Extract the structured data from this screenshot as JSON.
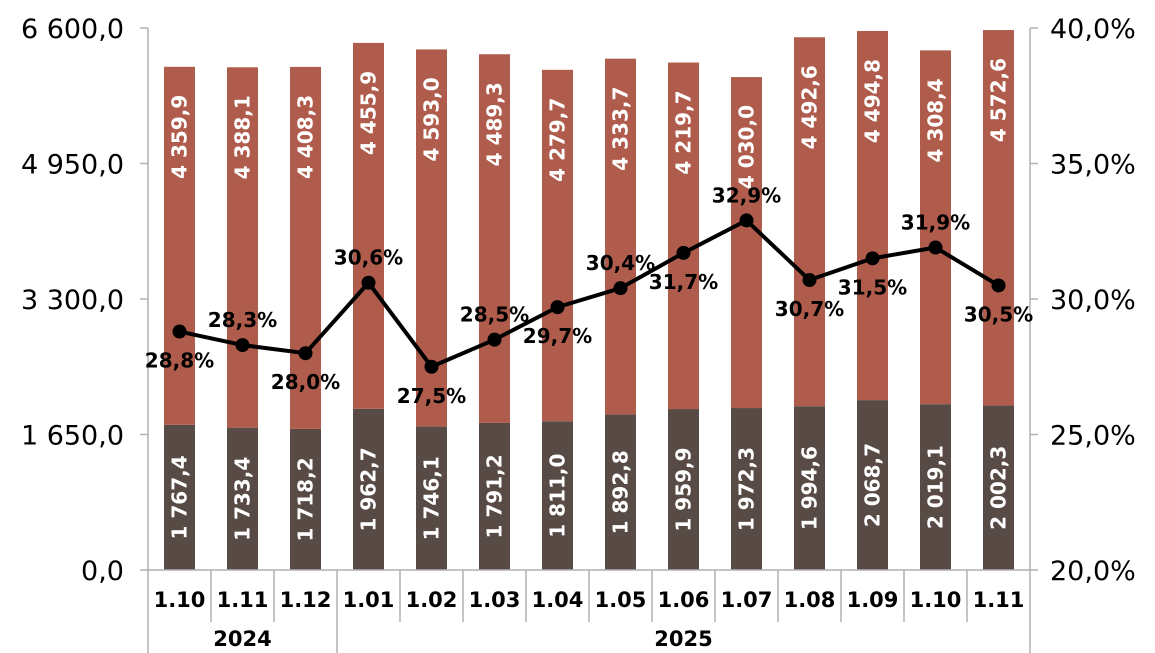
{
  "chart_data": {
    "type": "bar",
    "stacked": true,
    "categories": [
      "1.10",
      "1.11",
      "1.12",
      "1.01",
      "1.02",
      "1.03",
      "1.04",
      "1.05",
      "1.06",
      "1.07",
      "1.08",
      "1.09",
      "1.10",
      "1.11"
    ],
    "groups": [
      {
        "label": "2024",
        "count": 3
      },
      {
        "label": "2025",
        "count": 11
      }
    ],
    "series": [
      {
        "color": "#584a44",
        "values": [
          1767.4,
          1733.4,
          1718.2,
          1962.7,
          1746.1,
          1791.2,
          1811.0,
          1892.8,
          1959.9,
          1972.3,
          1994.6,
          2068.7,
          2019.1,
          2002.3
        ],
        "labels": [
          "1 767,4",
          "1 733,4",
          "1 718,2",
          "1 962,7",
          "1 746,1",
          "1 791,2",
          "1 811,0",
          "1 892,8",
          "1 959,9",
          "1 972,3",
          "1 994,6",
          "2 068,7",
          "2 019,1",
          "2 002,3"
        ]
      },
      {
        "color": "#b05c4c",
        "values": [
          4359.9,
          4388.1,
          4408.3,
          4455.9,
          4593.0,
          4489.3,
          4279.7,
          4333.7,
          4219.7,
          4030.0,
          4492.6,
          4494.8,
          4308.4,
          4572.6
        ],
        "labels": [
          "4 359,9",
          "4 388,1",
          "4 408,3",
          "4 455,9",
          "4 593,0",
          "4 489,3",
          "4 279,7",
          "4 333,7",
          "4 219,7",
          "4 030,0",
          "4 492,6",
          "4 494,8",
          "4 308,4",
          "4 572,6"
        ]
      },
      {
        "type": "line",
        "axis": "right",
        "color": "#000000",
        "values": [
          28.8,
          28.3,
          28.0,
          30.6,
          27.5,
          28.5,
          29.7,
          30.4,
          31.7,
          32.9,
          30.7,
          31.5,
          31.9,
          30.5
        ],
        "labels": [
          "28,8%",
          "28,3%",
          "28,0%",
          "30,6%",
          "27,5%",
          "28,5%",
          "29,7%",
          "30,4%",
          "31,7%",
          "32,9%",
          "30,7%",
          "31,5%",
          "31,9%",
          "30,5%"
        ],
        "label_positions": [
          "below",
          "above",
          "below",
          "above",
          "below",
          "above",
          "below",
          "above",
          "below",
          "above",
          "below",
          "below",
          "above",
          "below"
        ]
      }
    ],
    "y_left": {
      "min": 0,
      "max": 6600,
      "ticks": [
        0,
        1650,
        3300,
        4950,
        6600
      ],
      "tick_labels": [
        "0,0",
        "1 650,0",
        "3 300,0",
        "4 950,0",
        "6 600,0"
      ]
    },
    "y_right": {
      "min": 20,
      "max": 40,
      "ticks": [
        20,
        25,
        30,
        35,
        40
      ],
      "tick_labels": [
        "20,0%",
        "25,0%",
        "30,0%",
        "35,0%",
        "40,0%"
      ]
    },
    "title": "",
    "grid": false,
    "legend": "none"
  }
}
